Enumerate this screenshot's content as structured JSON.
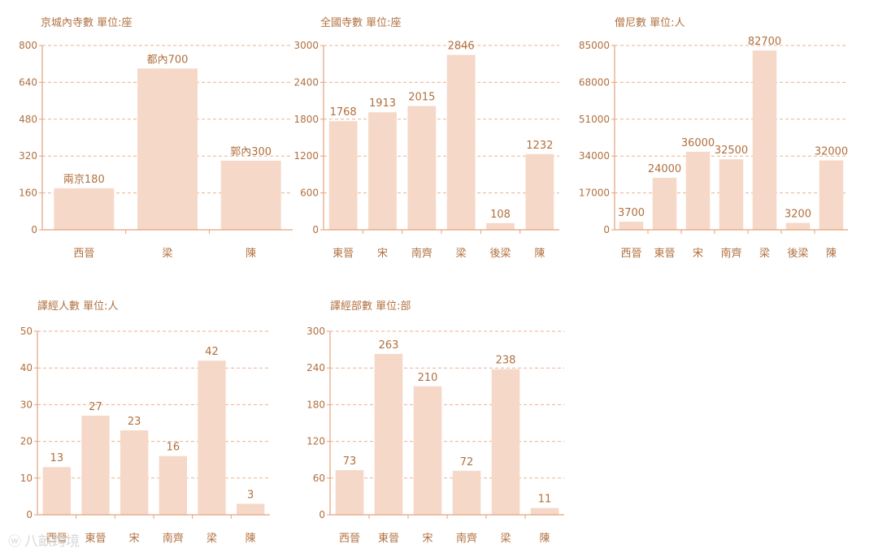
{
  "colors": {
    "bar": "#f5d8c8",
    "axis": "#e4a27c",
    "grid": "#ebb18f",
    "text": "#b0703f"
  },
  "watermark": {
    "text": "八畝跨境",
    "icon": "weibo-logo-icon"
  },
  "chart_data": [
    {
      "type": "bar",
      "title": "京城內寺數  單位:座",
      "categories": [
        "西晉",
        "梁",
        "陳"
      ],
      "values": [
        180,
        700,
        300
      ],
      "data_labels": [
        "兩京180",
        "都內700",
        "郭內300"
      ],
      "yticks": [
        0,
        160,
        320,
        480,
        640,
        800
      ],
      "ylim": [
        0,
        800
      ],
      "grid": true
    },
    {
      "type": "bar",
      "title": "全國寺數  單位:座",
      "categories": [
        "東晉",
        "宋",
        "南齊",
        "梁",
        "後梁",
        "陳"
      ],
      "values": [
        1768,
        1913,
        2015,
        2846,
        108,
        1232
      ],
      "data_labels": [
        "1768",
        "1913",
        "2015",
        "2846",
        "108",
        "1232"
      ],
      "yticks": [
        0,
        600,
        1200,
        1800,
        2400,
        3000
      ],
      "ylim": [
        0,
        3000
      ],
      "grid": true
    },
    {
      "type": "bar",
      "title": "僧尼數  單位:人",
      "categories": [
        "西晉",
        "東晉",
        "宋",
        "南齊",
        "梁",
        "後梁",
        "陳"
      ],
      "values": [
        3700,
        24000,
        36000,
        32500,
        82700,
        3200,
        32000
      ],
      "data_labels": [
        "3700",
        "24000",
        "36000",
        "32500",
        "82700",
        "3200",
        "32000"
      ],
      "yticks": [
        0,
        17000,
        34000,
        51000,
        68000,
        85000
      ],
      "ylim": [
        0,
        85000
      ],
      "grid": true
    },
    {
      "type": "bar",
      "title": "譯經人數  單位:人",
      "categories": [
        "西晉",
        "東晉",
        "宋",
        "南齊",
        "梁",
        "陳"
      ],
      "values": [
        13,
        27,
        23,
        16,
        42,
        3
      ],
      "data_labels": [
        "13",
        "27",
        "23",
        "16",
        "42",
        "3"
      ],
      "yticks": [
        0,
        10,
        20,
        30,
        40,
        50
      ],
      "ylim": [
        0,
        50
      ],
      "grid": true
    },
    {
      "type": "bar",
      "title": "譯經部數  單位:部",
      "categories": [
        "西晉",
        "東晉",
        "宋",
        "南齊",
        "梁",
        "陳"
      ],
      "values": [
        73,
        263,
        210,
        72,
        238,
        11
      ],
      "data_labels": [
        "73",
        "263",
        "210",
        "72",
        "238",
        "11"
      ],
      "yticks": [
        0,
        60,
        120,
        180,
        240,
        300
      ],
      "ylim": [
        0,
        300
      ],
      "grid": true
    }
  ]
}
